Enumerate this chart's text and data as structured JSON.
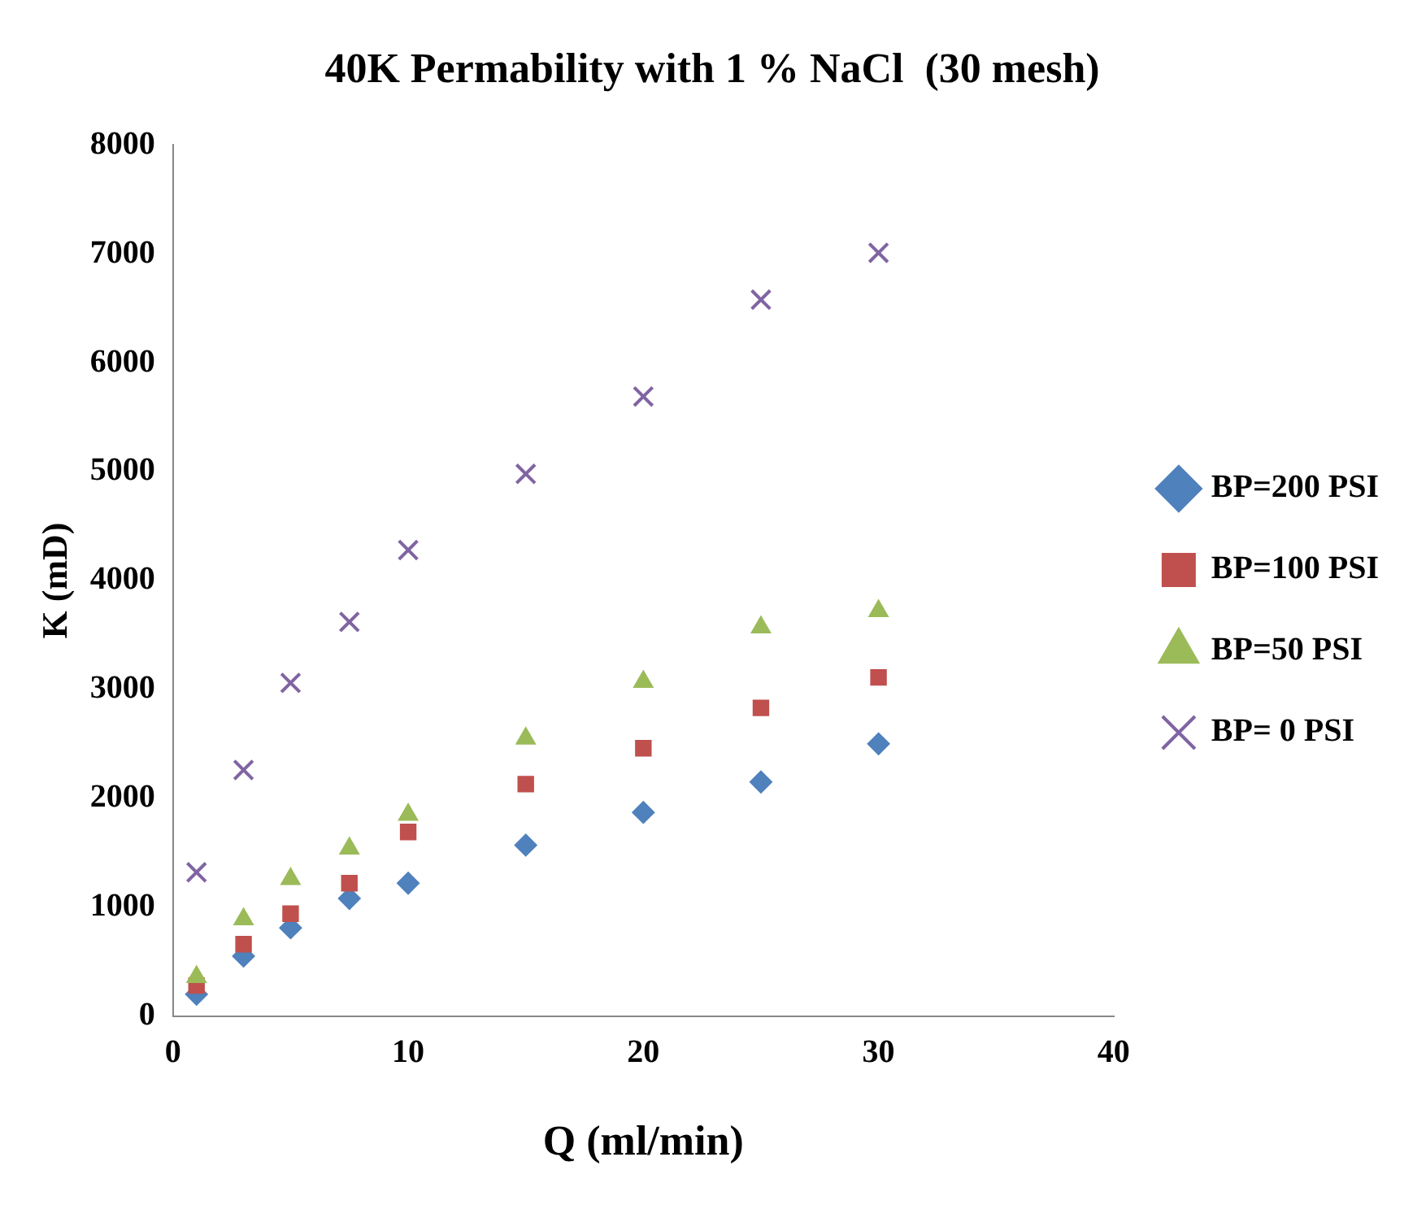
{
  "chart_data": {
    "type": "scatter",
    "title": "40K Permability with 1 % NaCl  (30 mesh)",
    "xlabel": "Q (ml/min)",
    "ylabel": "K (mD)",
    "x": [
      1,
      3,
      5,
      7.5,
      10,
      15,
      20,
      25,
      30
    ],
    "series": [
      {
        "name": "BP=200 PSI",
        "color": "#4f81bd",
        "marker": "diamond",
        "values": [
          200,
          550,
          810,
          1080,
          1220,
          1570,
          1870,
          2150,
          2500
        ]
      },
      {
        "name": "BP=100 PSI",
        "color": "#c0504d",
        "marker": "square",
        "values": [
          280,
          660,
          940,
          1220,
          1690,
          2130,
          2460,
          2830,
          3110
        ]
      },
      {
        "name": "BP=50 PSI",
        "color": "#9bbb59",
        "marker": "triangle",
        "values": [
          360,
          890,
          1260,
          1540,
          1850,
          2550,
          3070,
          3570,
          3720
        ]
      },
      {
        "name": "BP= 0 PSI",
        "color": "#8064a2",
        "marker": "cross",
        "values": [
          1320,
          2260,
          3060,
          3620,
          4280,
          4980,
          5690,
          6580,
          7010
        ]
      }
    ],
    "xlim": [
      0,
      40
    ],
    "xticks": [
      0,
      10,
      20,
      30,
      40
    ],
    "ylim": [
      0,
      8000
    ],
    "yticks": [
      0,
      1000,
      2000,
      3000,
      4000,
      5000,
      6000,
      7000,
      8000
    ],
    "grid": false,
    "legend": "right"
  }
}
